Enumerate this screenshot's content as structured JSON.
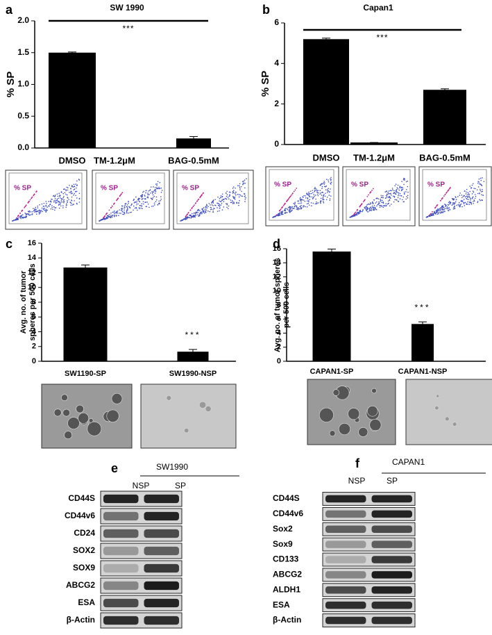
{
  "chart_data": [
    {
      "type": "bar",
      "panel": "a",
      "title": "SW 1990",
      "ylabel": [
        "% SP"
      ],
      "categories": [
        "DMSO",
        "TM-1.2μM",
        "BAG-0.5mM"
      ],
      "values": [
        1.5,
        0,
        0.15
      ],
      "errors": [
        0.01,
        0,
        0.03
      ],
      "color": "#000000",
      "ylim": [
        0,
        2
      ],
      "yticks": [
        {
          "value": 0,
          "label": "0.0"
        },
        0.5,
        {
          "value": 1,
          "label": "1.0"
        },
        1.5,
        {
          "value": 2,
          "label": "2.0"
        }
      ],
      "annotation": "***",
      "gate_label": "% SP"
    },
    {
      "type": "bar",
      "panel": "b",
      "title": "Capan1",
      "ylabel": [
        "% SP"
      ],
      "categories": [
        "DMSO",
        "TM-1.2μM",
        "BAG-0.5mM"
      ],
      "values": [
        5.2,
        0.1,
        2.7
      ],
      "errors": [
        0.05,
        0,
        0.05
      ],
      "color": "#000000",
      "ylim": [
        0,
        6
      ],
      "yticks": [
        0,
        2,
        4,
        6
      ],
      "annotation": "***",
      "gate_label": "% SP"
    },
    {
      "type": "bar",
      "panel": "c",
      "ylabel": [
        "Avg. no. of tumor",
        "spheres per 500 cells"
      ],
      "categories": [
        "SW1190-SP",
        "SW1990-NSP"
      ],
      "values": [
        12.7,
        1.3
      ],
      "errors": [
        0.35,
        0.3
      ],
      "color": "#000000",
      "ylim": [
        0,
        16
      ],
      "yticks": [
        0,
        2,
        4,
        6,
        8,
        10,
        12,
        14,
        16
      ],
      "annotation": "***"
    },
    {
      "type": "bar",
      "panel": "d",
      "ylabel": [
        "Avg. no. of tumor spheres",
        "per 500 cells"
      ],
      "categories": [
        "CAPAN1-SP",
        "CAPAN1-NSP"
      ],
      "values": [
        15.6,
        5.3
      ],
      "errors": [
        0.35,
        0.3
      ],
      "color": "#000000",
      "ylim": [
        0,
        16
      ],
      "yticks": [
        0,
        2,
        4,
        6,
        8,
        10,
        12,
        14,
        16
      ],
      "annotation": "***"
    }
  ],
  "blots": [
    {
      "panel": "e",
      "title": "SW1990",
      "lanes": [
        "NSP",
        "SP"
      ],
      "markers": [
        "CD44S",
        "CD44v6",
        "CD24",
        "SOX2",
        "SOX9",
        "ABCG2",
        "ESA",
        "β-Actin"
      ]
    },
    {
      "panel": "f",
      "title": "CAPAN1",
      "lanes": [
        "NSP",
        "SP"
      ],
      "markers": [
        "CD44S",
        "CD44v6",
        "Sox2",
        "Sox9",
        "CD133",
        "ABCG2",
        "ALDH1",
        "ESA",
        "β-Actin"
      ]
    }
  ]
}
